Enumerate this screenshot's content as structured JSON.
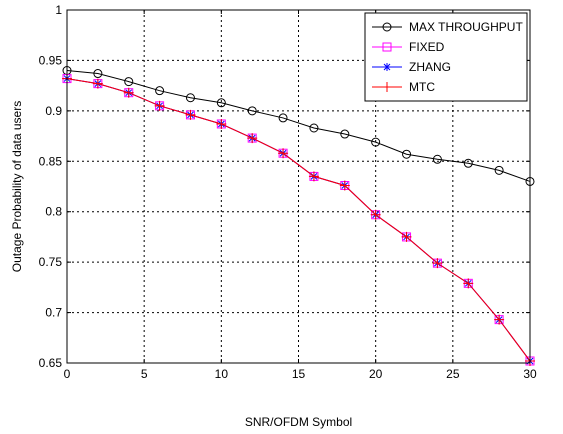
{
  "chart_data": {
    "type": "line",
    "xlabel": "SNR/OFDM Symbol",
    "ylabel": "Outage Probability of data users",
    "xlim": [
      0,
      30
    ],
    "ylim": [
      0.65,
      1
    ],
    "xticks": [
      "0",
      "5",
      "10",
      "15",
      "20",
      "25",
      "30"
    ],
    "yticks": [
      "0.65",
      "0.7",
      "0.75",
      "0.8",
      "0.85",
      "0.9",
      "0.95",
      "1"
    ],
    "grid": true,
    "legend_position": "top-right",
    "x": [
      0,
      2,
      4,
      6,
      8,
      10,
      12,
      14,
      16,
      18,
      20,
      22,
      24,
      26,
      28,
      30
    ],
    "series": [
      {
        "name": "MAX THROUGHPUT",
        "color": "#000000",
        "marker": "circle",
        "values": [
          0.94,
          0.937,
          0.929,
          0.92,
          0.913,
          0.908,
          0.9,
          0.893,
          0.883,
          0.877,
          0.869,
          0.857,
          0.852,
          0.848,
          0.841,
          0.83
        ]
      },
      {
        "name": "FIXED",
        "color": "#ff00ff",
        "marker": "square",
        "values": [
          0.932,
          0.927,
          0.918,
          0.905,
          0.896,
          0.887,
          0.873,
          0.858,
          0.835,
          0.826,
          0.797,
          0.775,
          0.749,
          0.729,
          0.693,
          0.652
        ]
      },
      {
        "name": "ZHANG",
        "color": "#0000ff",
        "marker": "asterisk",
        "values": [
          0.932,
          0.927,
          0.918,
          0.905,
          0.896,
          0.887,
          0.873,
          0.858,
          0.835,
          0.826,
          0.797,
          0.775,
          0.749,
          0.729,
          0.693,
          0.652
        ]
      },
      {
        "name": "MTC",
        "color": "#ff0000",
        "marker": "plus",
        "values": [
          0.932,
          0.927,
          0.918,
          0.905,
          0.896,
          0.887,
          0.873,
          0.858,
          0.835,
          0.826,
          0.797,
          0.775,
          0.749,
          0.729,
          0.693,
          0.652
        ]
      }
    ]
  }
}
